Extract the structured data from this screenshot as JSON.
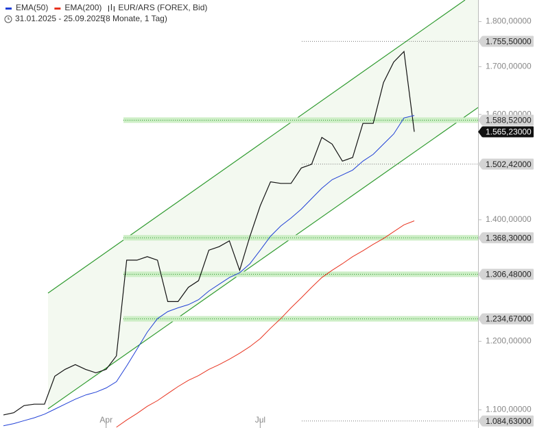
{
  "chart_data": {
    "type": "line",
    "period": "31.01.2025 - 25.09.2025",
    "period_note": "(8 Monate, 1 Tag)",
    "categories": [
      null,
      null,
      null,
      null,
      null,
      null,
      null,
      null,
      null,
      null,
      "Apr",
      null,
      null,
      null,
      null,
      null,
      null,
      null,
      null,
      null,
      null,
      null,
      null,
      null,
      null,
      "Jul",
      null,
      null,
      null,
      null,
      null,
      null,
      null,
      null,
      null,
      null,
      null,
      null,
      null,
      null,
      null
    ],
    "series": [
      {
        "name": "EUR/ARS (FOREX, Bid)",
        "color": "#111111",
        "values": [
          1093,
          1096,
          1106,
          1108,
          1108,
          1148,
          1158,
          1165,
          1158,
          1153,
          1158,
          1178,
          1330,
          1330,
          1336,
          1330,
          1262,
          1262,
          1285,
          1296,
          1347,
          1353,
          1363,
          1313,
          1371,
          1425,
          1469,
          1466,
          1466,
          1495,
          1502,
          1554,
          1541,
          1508,
          1515,
          1582,
          1582,
          1666,
          1710,
          1733,
          1565.23
        ]
      },
      {
        "name": "EMA(50)",
        "color": "#1f3fd6",
        "values": [
          1078,
          1081,
          1085,
          1089,
          1094,
          1101,
          1108,
          1115,
          1121,
          1125,
          1131,
          1140,
          1163,
          1188,
          1214,
          1235,
          1246,
          1252,
          1257,
          1265,
          1279,
          1290,
          1301,
          1309,
          1324,
          1347,
          1371,
          1389,
          1403,
          1419,
          1438,
          1457,
          1473,
          1482,
          1491,
          1508,
          1521,
          1541,
          1561,
          1593,
          1598
        ]
      },
      {
        "name": "EMA(200)",
        "color": "#e8321e",
        "values": [
          null,
          null,
          null,
          null,
          null,
          null,
          null,
          null,
          null,
          null,
          null,
          1076,
          1086,
          1095,
          1105,
          1113,
          1123,
          1133,
          1142,
          1149,
          1158,
          1165,
          1173,
          1182,
          1192,
          1204,
          1220,
          1235,
          1252,
          1268,
          1285,
          1301,
          1313,
          1324,
          1336,
          1346,
          1357,
          1367,
          1379,
          1391,
          1398
        ]
      }
    ],
    "log_scale": true,
    "ylim": [
      1075,
      1850
    ],
    "yticks": [
      {
        "value": 1100,
        "label": "1.100,00000"
      },
      {
        "value": 1200,
        "label": "1.200,00000"
      },
      {
        "value": 1400,
        "label": "1.400,00000"
      },
      {
        "value": 1600,
        "label": "1.600,00000"
      },
      {
        "value": 1700,
        "label": "1.700,00000"
      },
      {
        "value": 1800,
        "label": "1.800,00000"
      }
    ],
    "levels": [
      {
        "value": 1755.5,
        "label": "1.755,50000",
        "zone": false
      },
      {
        "value": 1588.52,
        "label": "1.588,52000",
        "zone": true
      },
      {
        "value": 1502.42,
        "label": "1.502,42000",
        "zone": false
      },
      {
        "value": 1368.3,
        "label": "1.368,30000",
        "zone": true
      },
      {
        "value": 1306.48,
        "label": "1.306,48000",
        "zone": true
      },
      {
        "value": 1234.67,
        "label": "1.234,67000",
        "zone": true
      },
      {
        "value": 1084.63,
        "label": "1.084,63000",
        "zone": false
      }
    ],
    "last_price": {
      "value": 1565.23,
      "label": "1.565,23000"
    }
  }
}
